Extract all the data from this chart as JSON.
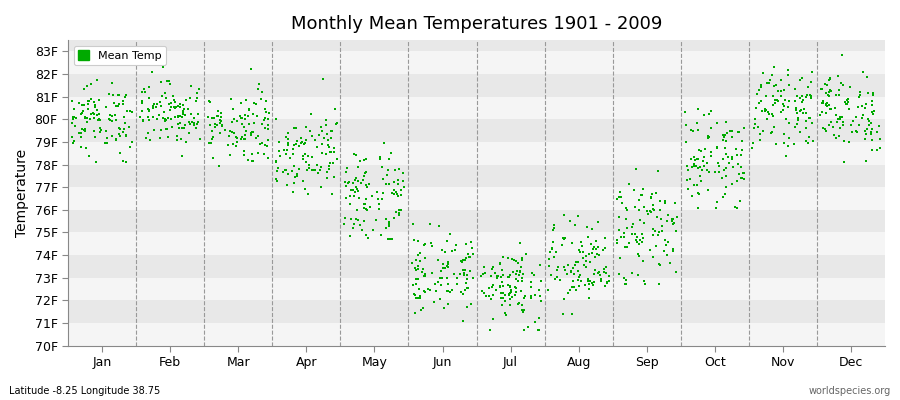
{
  "title": "Monthly Mean Temperatures 1901 - 2009",
  "ylabel": "Temperature",
  "xlabel_bottom_left": "Latitude -8.25 Longitude 38.75",
  "xlabel_bottom_right": "worldspecies.org",
  "legend_label": "Mean Temp",
  "dot_color": "#00AA00",
  "dot_size": 3,
  "bg_color": "#E8E8E8",
  "band_color": "#F5F5F5",
  "ylim": [
    70,
    83.5
  ],
  "ytick_labels": [
    "70F",
    "71F",
    "72F",
    "73F",
    "74F",
    "75F",
    "76F",
    "77F",
    "78F",
    "79F",
    "80F",
    "81F",
    "82F",
    "83F"
  ],
  "ytick_values": [
    70,
    71,
    72,
    73,
    74,
    75,
    76,
    77,
    78,
    79,
    80,
    81,
    82,
    83
  ],
  "months": [
    "Jan",
    "Feb",
    "Mar",
    "Apr",
    "May",
    "Jun",
    "Jul",
    "Aug",
    "Sep",
    "Oct",
    "Nov",
    "Dec"
  ],
  "month_centers": [
    0.5,
    1.5,
    2.5,
    3.5,
    4.5,
    5.5,
    6.5,
    7.5,
    8.5,
    9.5,
    10.5,
    11.5
  ],
  "num_years": 109,
  "month_mean": [
    80.0,
    80.3,
    79.7,
    78.6,
    76.6,
    73.2,
    72.7,
    73.5,
    75.0,
    78.2,
    80.5,
    80.3
  ],
  "month_std": [
    0.8,
    0.7,
    0.8,
    0.9,
    1.1,
    0.9,
    0.9,
    1.0,
    1.2,
    1.0,
    0.8,
    0.9
  ],
  "month_min": [
    77.8,
    77.7,
    77.4,
    76.7,
    74.7,
    71.1,
    70.7,
    71.4,
    72.7,
    76.1,
    78.4,
    78.1
  ],
  "month_max": [
    82.9,
    82.8,
    82.5,
    81.8,
    79.8,
    76.2,
    75.8,
    76.5,
    77.8,
    81.2,
    83.5,
    83.2
  ]
}
